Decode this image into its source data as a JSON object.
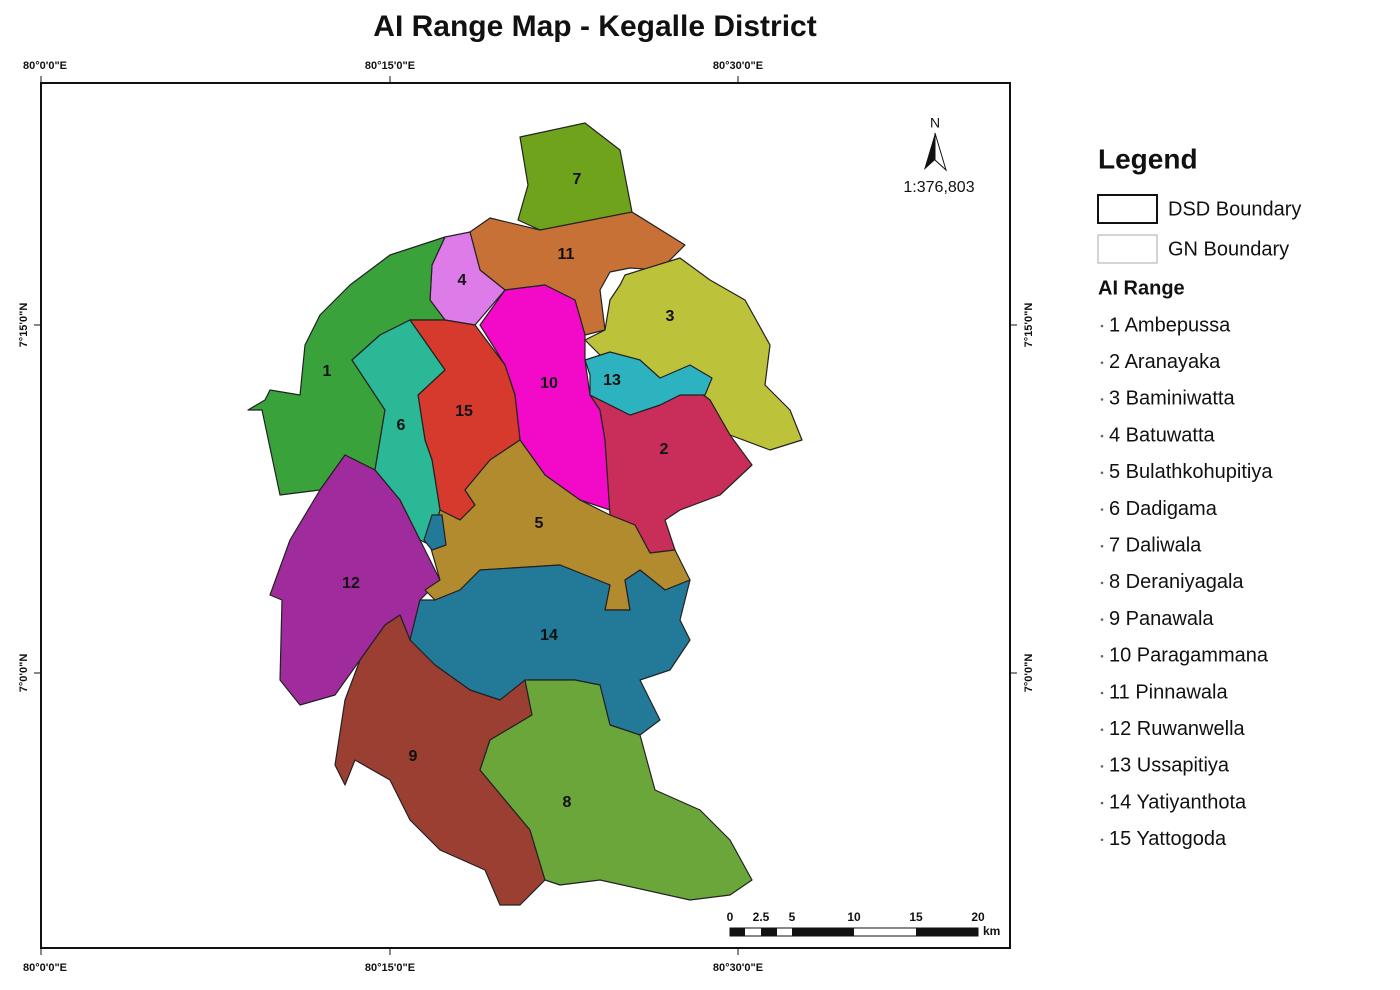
{
  "title": "AI Range Map - Kegalle District",
  "graticule": {
    "top": [
      "80°0'0\"E",
      "80°15'0\"E",
      "80°30'0\"E"
    ],
    "bottom": [
      "80°0'0\"E",
      "80°15'0\"E",
      "80°30'0\"E"
    ],
    "left": [
      "7°15'0\"N",
      "7°0'0\"N"
    ],
    "right": [
      "7°15'0\"N",
      "7°0'0\"N"
    ]
  },
  "north_arrow": "N",
  "scale_ratio": "1:376,803",
  "scale_bar": {
    "ticks": [
      "0",
      "2.5",
      "5",
      "10",
      "15",
      "20"
    ],
    "unit": "km"
  },
  "legend": {
    "title": "Legend",
    "boundaries": [
      "DSD Boundary",
      "GN Boundary"
    ],
    "ai_range_title": "AI Range",
    "ranges": [
      "1 Ambepussa",
      "2 Aranayaka",
      "3 Baminiwatta",
      "4 Batuwatta",
      "5 Bulathkohupitiya",
      "6 Dadigama",
      "7 Daliwala",
      "8 Deraniyagala",
      "9 Panawala",
      "10 Paragammana",
      "11 Pinnawala",
      "12 Ruwanwella",
      "13 Ussapitiya",
      "14 Yatiyanthota",
      "15 Yattogoda"
    ]
  },
  "regions": [
    {
      "label": "1",
      "color": "#3aa23a"
    },
    {
      "label": "2",
      "color": "#c82e59"
    },
    {
      "label": "3",
      "color": "#bcc23a"
    },
    {
      "label": "4",
      "color": "#dd7be8"
    },
    {
      "label": "5",
      "color": "#b38b2f"
    },
    {
      "label": "6",
      "color": "#2ab897"
    },
    {
      "label": "7",
      "color": "#6fa31c"
    },
    {
      "label": "8",
      "color": "#6ba63a"
    },
    {
      "label": "9",
      "color": "#9b3f33"
    },
    {
      "label": "10",
      "color": "#f20ac8"
    },
    {
      "label": "11",
      "color": "#c87137"
    },
    {
      "label": "12",
      "color": "#a02b9c"
    },
    {
      "label": "13",
      "color": "#2db3bf"
    },
    {
      "label": "14",
      "color": "#227a98"
    },
    {
      "label": "15",
      "color": "#d63a2c"
    }
  ]
}
